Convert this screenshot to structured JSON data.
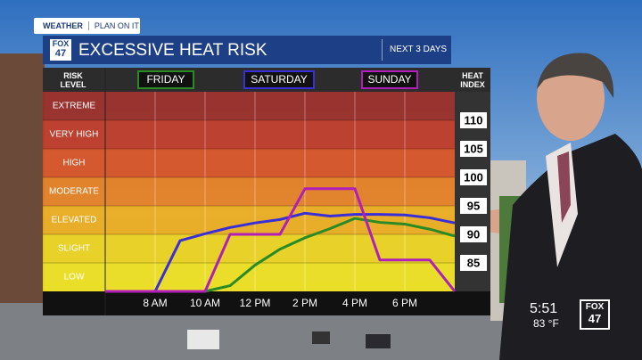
{
  "header": {
    "brand": "WEATHER",
    "tagline": "PLAN ON IT"
  },
  "logo": {
    "top": "FOX",
    "bottom": "47"
  },
  "clock": {
    "time": "5:51",
    "temp": "83 °F"
  },
  "chart_data": {
    "type": "line",
    "title": "EXCESSIVE HEAT RISK",
    "subtitle": "NEXT 3 DAYS",
    "risk_axis_label": "RISK LEVEL",
    "y_axis_label": "HEAT INDEX",
    "xlim": [
      6,
      20
    ],
    "xticks": [
      {
        "value": 8,
        "label": "8 AM"
      },
      {
        "value": 10,
        "label": "10 AM"
      },
      {
        "value": 12,
        "label": "12 PM"
      },
      {
        "value": 14,
        "label": "2 PM"
      },
      {
        "value": 16,
        "label": "4 PM"
      },
      {
        "value": 18,
        "label": "6 PM"
      }
    ],
    "ylim": [
      80,
      115
    ],
    "yticks": [
      85,
      90,
      95,
      100,
      105,
      110
    ],
    "grid": true,
    "risk_levels": [
      {
        "label": "LOW",
        "from": 80,
        "to": 85,
        "color": "#f2e21c"
      },
      {
        "label": "SLIGHT",
        "from": 85,
        "to": 90,
        "color": "#f0d41a"
      },
      {
        "label": "ELEVATED",
        "from": 90,
        "to": 95,
        "color": "#f1ae1a"
      },
      {
        "label": "MODERATE",
        "from": 95,
        "to": 100,
        "color": "#e9801e"
      },
      {
        "label": "HIGH",
        "from": 100,
        "to": 105,
        "color": "#dc521f"
      },
      {
        "label": "VERY HIGH",
        "from": 105,
        "to": 110,
        "color": "#c43a22"
      },
      {
        "label": "EXTREME",
        "from": 110,
        "to": 115,
        "color": "#9e2b22"
      }
    ],
    "series": [
      {
        "name": "FRIDAY",
        "color": "#2a8a24",
        "x": [
          6,
          10,
          11,
          12,
          13,
          14,
          15,
          16,
          17,
          18,
          19,
          20
        ],
        "values": [
          80,
          80,
          81,
          84.6,
          87.4,
          89.4,
          91,
          92.8,
          92.1,
          91.8,
          90.9,
          89.7
        ]
      },
      {
        "name": "SATURDAY",
        "color": "#3a2fd6",
        "x": [
          6,
          8,
          9,
          10,
          11,
          12,
          13,
          14,
          15,
          16,
          17,
          18,
          19,
          20
        ],
        "values": [
          80,
          80,
          88.9,
          90.1,
          91.2,
          92,
          92.6,
          93.7,
          93.2,
          93.5,
          93.5,
          93.4,
          92.9,
          92
        ]
      },
      {
        "name": "SUNDAY",
        "color": "#b020b8",
        "x": [
          6,
          10,
          11,
          13,
          14,
          16,
          17,
          19,
          20
        ],
        "values": [
          80,
          80,
          90,
          90,
          98,
          98,
          85.5,
          85.5,
          80
        ]
      }
    ]
  }
}
